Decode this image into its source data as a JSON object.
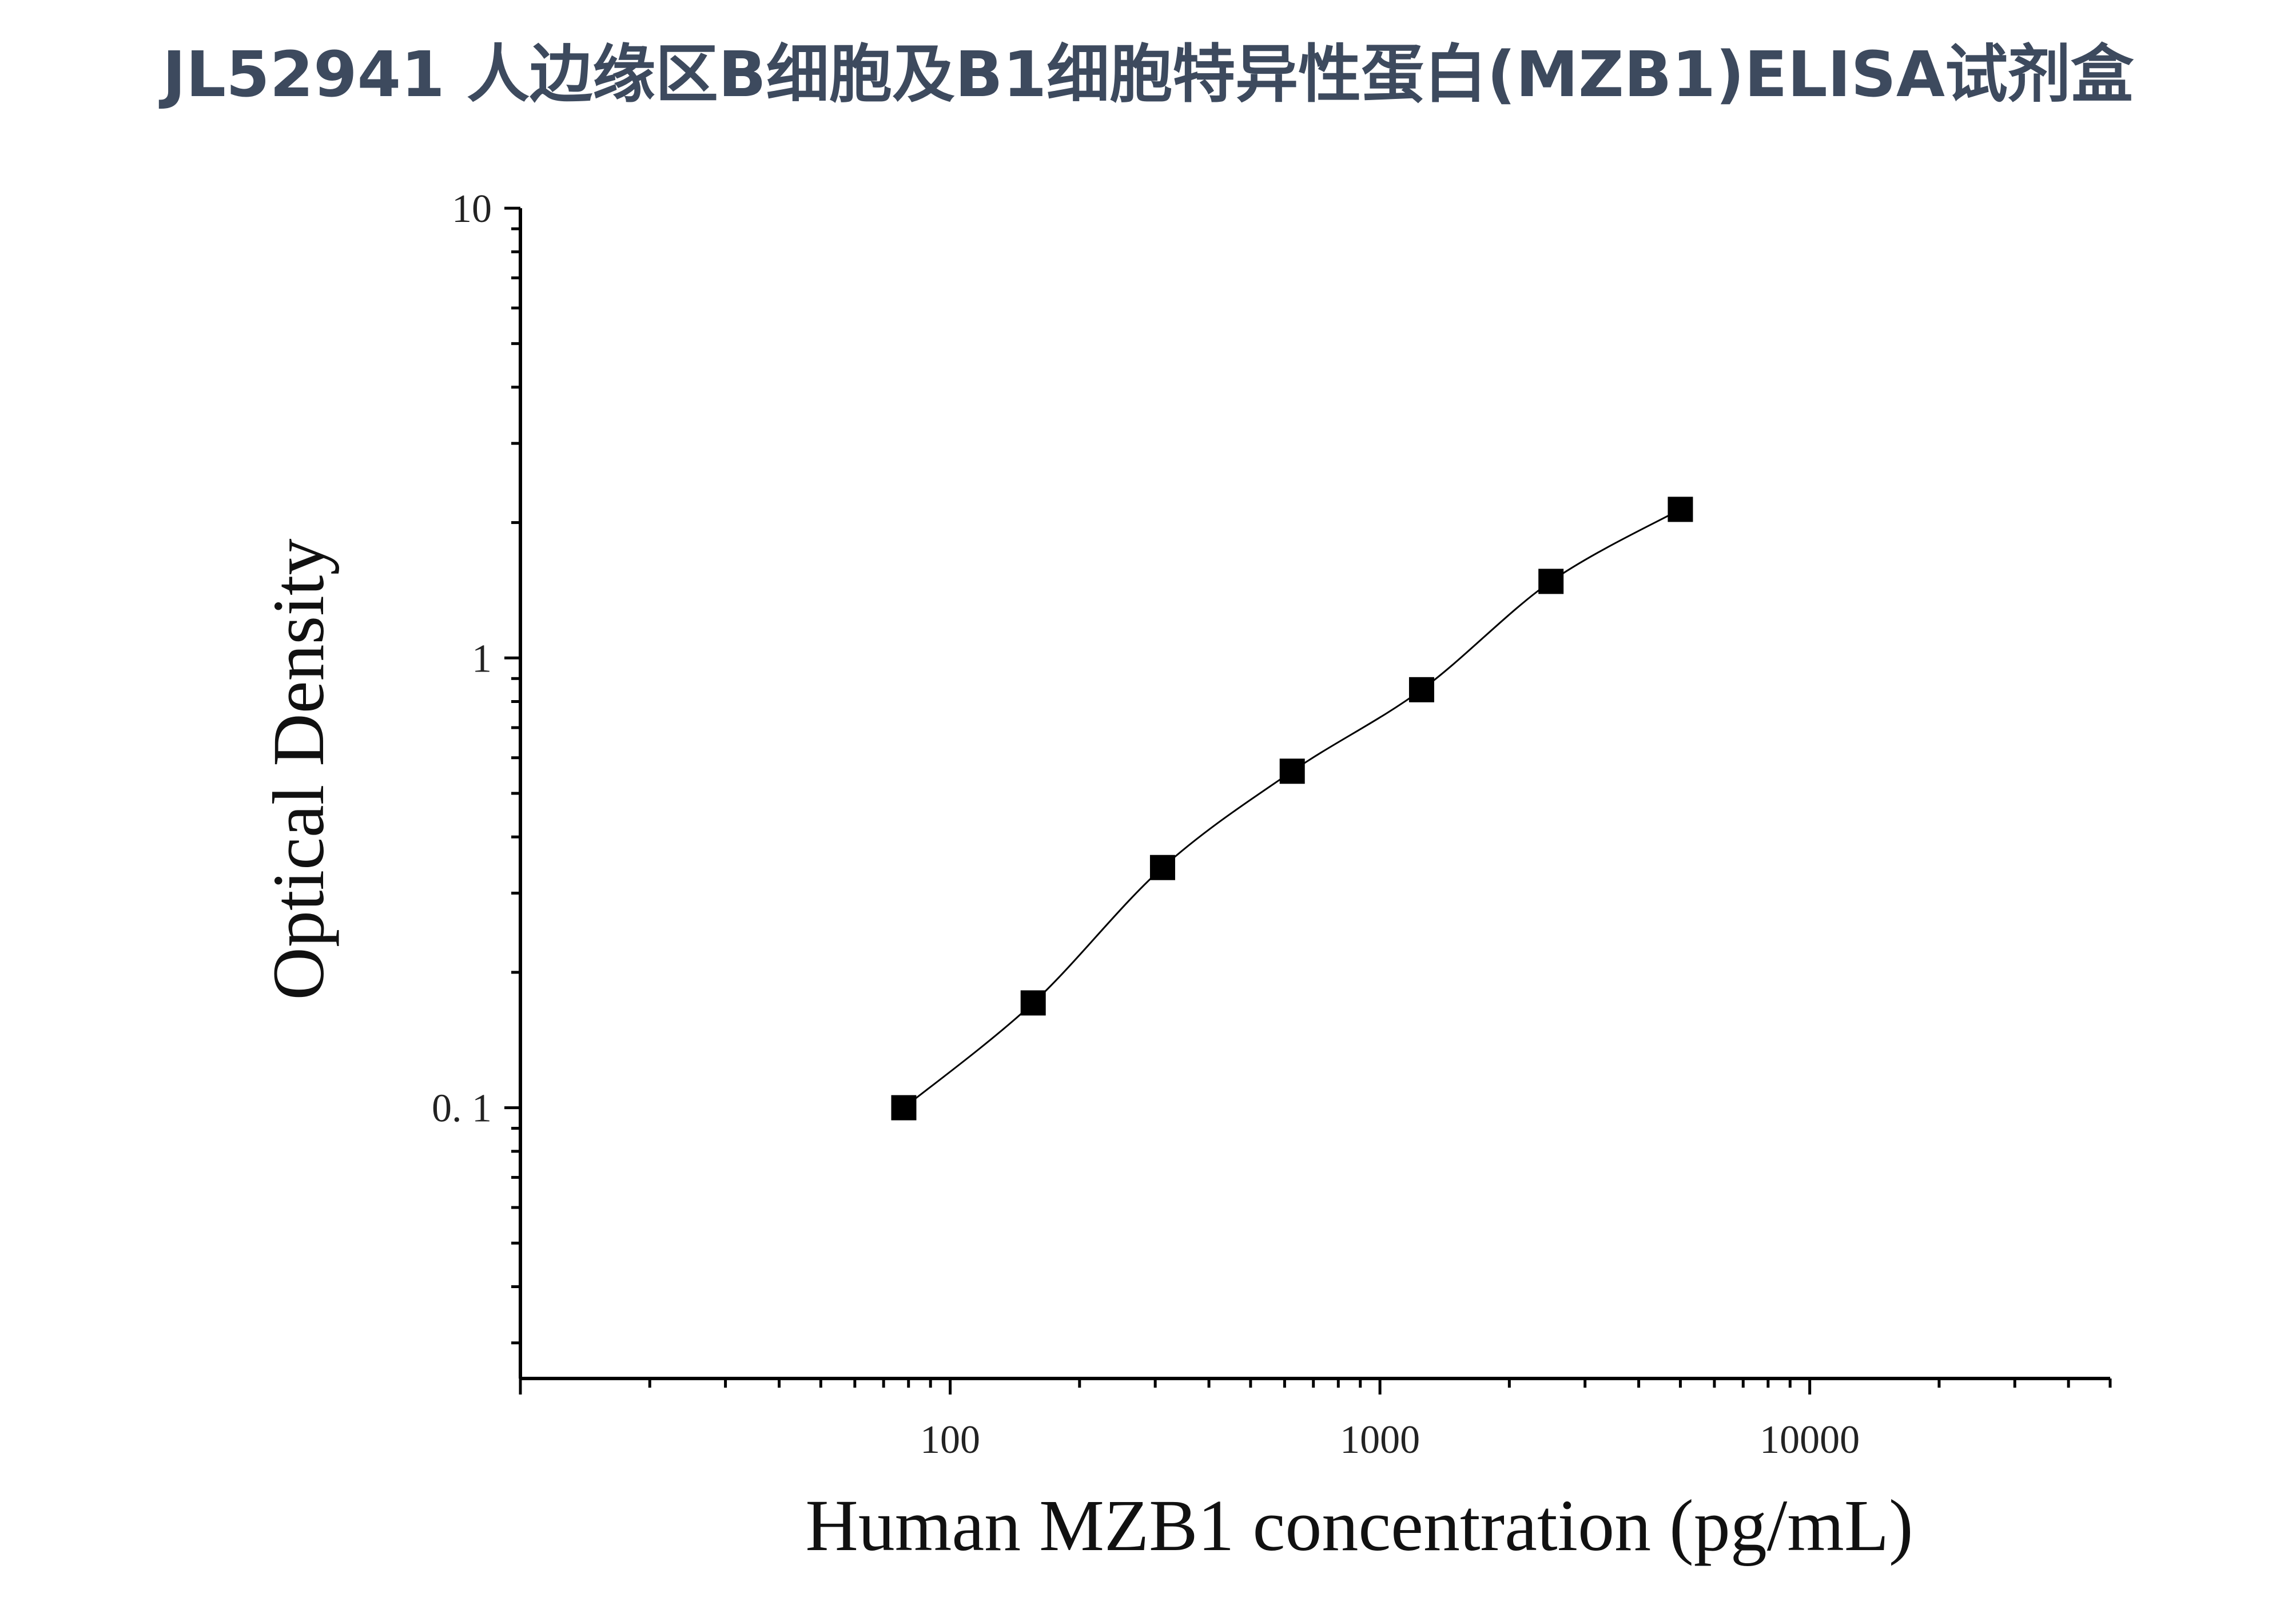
{
  "title": "JL52941 人边缘区B细胞及B1细胞特异性蛋白(MZB1)ELISA试剂盒",
  "chart_data": {
    "type": "scatter",
    "xlabel": "Human MZB1 concentration (pg/mL)",
    "ylabel": "Optical Density",
    "x_scale": "log",
    "y_scale": "log",
    "xlim": [
      10,
      50000
    ],
    "ylim": [
      0.025,
      10
    ],
    "x_ticks": [
      {
        "value": 100,
        "label": "100"
      },
      {
        "value": 1000,
        "label": "1000"
      },
      {
        "value": 10000,
        "label": "10000"
      }
    ],
    "y_ticks": [
      {
        "value": 0.1,
        "label": "0. 1"
      },
      {
        "value": 1,
        "label": "1"
      },
      {
        "value": 10,
        "label": "10"
      }
    ],
    "grid": false,
    "series": [
      {
        "x": [
          78,
          156,
          312,
          625,
          1250,
          2500,
          5000
        ],
        "y": [
          0.1,
          0.171,
          0.342,
          0.56,
          0.85,
          1.48,
          2.14
        ],
        "marker": "square",
        "fit_line": true
      }
    ],
    "colors": {
      "title": "#3d4a5e",
      "axis": "#000000",
      "marker": "#000000"
    }
  }
}
